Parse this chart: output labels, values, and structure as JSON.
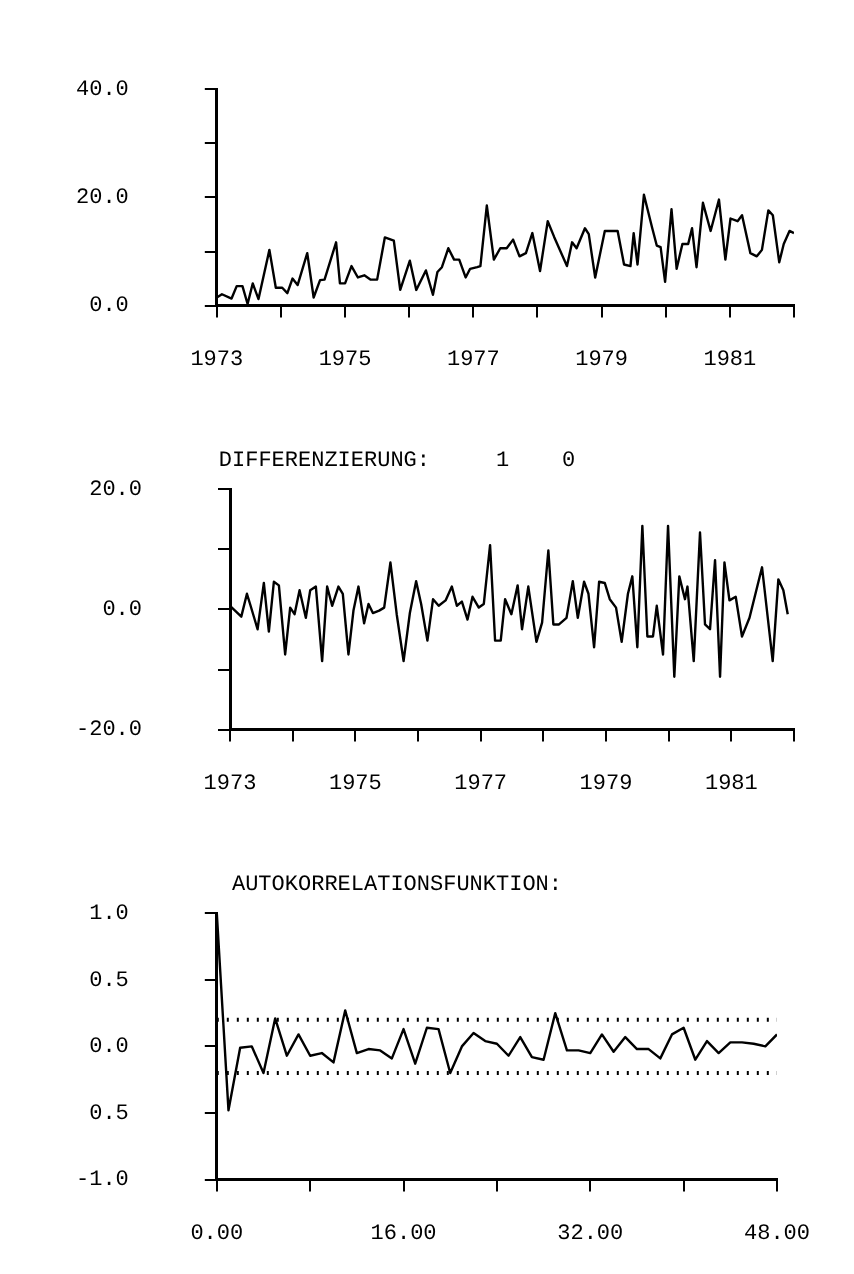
{
  "chart_data": [
    {
      "type": "line",
      "marker": "none",
      "line_style": "solid",
      "grid": false,
      "x": [
        1973.0,
        1973.08,
        1973.23,
        1973.31,
        1973.4,
        1973.48,
        1973.56,
        1973.65,
        1973.82,
        1973.92,
        1974.02,
        1974.1,
        1974.18,
        1974.26,
        1974.41,
        1974.51,
        1974.61,
        1974.68,
        1974.86,
        1974.92,
        1975.0,
        1975.1,
        1975.2,
        1975.3,
        1975.4,
        1975.5,
        1975.62,
        1975.76,
        1975.86,
        1976.01,
        1976.11,
        1976.26,
        1976.37,
        1976.44,
        1976.51,
        1976.61,
        1976.7,
        1976.78,
        1976.88,
        1976.95,
        1977.06,
        1977.11,
        1977.21,
        1977.32,
        1977.42,
        1977.52,
        1977.62,
        1977.72,
        1977.82,
        1977.92,
        1978.04,
        1978.16,
        1978.26,
        1978.46,
        1978.54,
        1978.61,
        1978.74,
        1978.8,
        1978.9,
        1979.05,
        1979.25,
        1979.35,
        1979.45,
        1979.5,
        1979.56,
        1979.66,
        1979.79,
        1979.86,
        1979.92,
        1979.99,
        1980.09,
        1980.17,
        1980.26,
        1980.35,
        1980.41,
        1980.48,
        1980.58,
        1980.7,
        1980.83,
        1980.93,
        1981.01,
        1981.12,
        1981.19,
        1981.32,
        1981.42,
        1981.5,
        1981.6,
        1981.67,
        1981.77,
        1981.84,
        1981.93,
        1982.0
      ],
      "series": [
        {
          "color": "#000000",
          "values": [
            1.5,
            2.1,
            1.3,
            3.6,
            3.6,
            0.3,
            4.1,
            1.2,
            10.3,
            3.3,
            3.3,
            2.3,
            5.0,
            3.8,
            9.7,
            1.5,
            4.7,
            4.8,
            11.7,
            4.1,
            4.1,
            7.3,
            5.2,
            5.6,
            4.8,
            4.8,
            12.6,
            12.0,
            2.9,
            8.3,
            2.9,
            6.5,
            2.0,
            6.2,
            7.1,
            10.6,
            8.5,
            8.5,
            5.2,
            6.8,
            7.1,
            7.3,
            18.5,
            8.5,
            10.6,
            10.6,
            12.2,
            9.1,
            9.7,
            13.4,
            6.4,
            15.6,
            12.7,
            7.3,
            11.7,
            10.6,
            14.3,
            13.2,
            5.2,
            13.8,
            13.8,
            7.6,
            7.3,
            13.4,
            7.6,
            20.5,
            14.3,
            11.1,
            10.8,
            4.4,
            17.8,
            6.8,
            11.4,
            11.4,
            14.3,
            7.1,
            19.0,
            13.8,
            19.6,
            8.5,
            16.1,
            15.6,
            16.7,
            9.7,
            9.1,
            10.3,
            17.6,
            16.7,
            8.0,
            11.4,
            13.8,
            13.4
          ]
        }
      ],
      "xlim": [
        1973,
        1982
      ],
      "xticks": [
        1973,
        {
          "value": 1974,
          "label": null
        },
        1975,
        {
          "value": 1976,
          "label": null
        },
        1977,
        {
          "value": 1978,
          "label": null
        },
        1979,
        {
          "value": 1980,
          "label": null
        },
        1981,
        {
          "value": 1982,
          "label": null
        }
      ],
      "ylim": [
        0,
        40
      ],
      "yticks": [
        {
          "value": 0,
          "label": "0.0"
        },
        {
          "value": 10,
          "label": null
        },
        {
          "value": 20,
          "label": "20.0"
        },
        {
          "value": 30,
          "label": null
        },
        {
          "value": 40,
          "label": "40.0"
        }
      ]
    },
    {
      "type": "line",
      "title": "DIFFERENZIERUNG:     1    0",
      "marker": "none",
      "line_style": "solid",
      "grid": false,
      "x": [
        1973.0,
        1973.08,
        1973.18,
        1973.27,
        1973.32,
        1973.44,
        1973.54,
        1973.62,
        1973.7,
        1973.78,
        1973.88,
        1973.96,
        1974.03,
        1974.11,
        1974.21,
        1974.28,
        1974.37,
        1974.47,
        1974.55,
        1974.63,
        1974.73,
        1974.8,
        1974.89,
        1974.97,
        1975.05,
        1975.14,
        1975.21,
        1975.28,
        1975.38,
        1975.46,
        1975.56,
        1975.66,
        1975.77,
        1975.87,
        1975.97,
        1976.05,
        1976.15,
        1976.24,
        1976.33,
        1976.44,
        1976.54,
        1976.62,
        1976.7,
        1976.79,
        1976.87,
        1976.97,
        1977.05,
        1977.15,
        1977.23,
        1977.32,
        1977.39,
        1977.49,
        1977.59,
        1977.66,
        1977.76,
        1977.89,
        1977.98,
        1978.08,
        1978.16,
        1978.25,
        1978.37,
        1978.47,
        1978.55,
        1978.65,
        1978.72,
        1978.81,
        1978.89,
        1978.98,
        1979.06,
        1979.16,
        1979.25,
        1979.35,
        1979.42,
        1979.5,
        1979.58,
        1979.66,
        1979.75,
        1979.81,
        1979.91,
        1979.99,
        1980.09,
        1980.17,
        1980.26,
        1980.3,
        1980.4,
        1980.5,
        1980.58,
        1980.66,
        1980.74,
        1980.82,
        1980.89,
        1980.97,
        1981.07,
        1981.17,
        1981.29,
        1981.49,
        1981.66,
        1981.75,
        1981.83,
        1981.9
      ],
      "series": [
        {
          "color": "#000000",
          "values": [
            0.6,
            -0.2,
            -1.2,
            2.6,
            0.9,
            -3.3,
            4.4,
            -3.7,
            4.6,
            4.0,
            -7.5,
            0.3,
            -0.8,
            3.2,
            -1.4,
            3.2,
            3.8,
            -8.6,
            3.8,
            0.6,
            3.8,
            2.6,
            -7.5,
            -0.2,
            3.8,
            -2.3,
            0.9,
            -0.6,
            -0.2,
            0.3,
            7.8,
            -0.8,
            -8.6,
            -0.6,
            4.7,
            0.9,
            -5.2,
            1.7,
            0.6,
            1.5,
            3.8,
            0.6,
            1.3,
            -1.7,
            2.1,
            0.3,
            0.9,
            10.7,
            -5.2,
            -5.2,
            1.7,
            -0.8,
            4.0,
            -3.3,
            3.8,
            -5.4,
            -2.2,
            9.8,
            -2.5,
            -2.5,
            -1.4,
            4.7,
            -1.4,
            4.6,
            2.6,
            -6.3,
            4.6,
            4.4,
            1.7,
            0.3,
            -5.4,
            2.6,
            5.5,
            -6.3,
            13.9,
            -4.5,
            -4.5,
            0.6,
            -7.5,
            13.9,
            -11.2,
            5.5,
            1.7,
            3.8,
            -8.6,
            12.8,
            -2.5,
            -3.3,
            8.2,
            -11.2,
            7.8,
            1.5,
            2.1,
            -4.5,
            -1.4,
            7.0,
            -8.6,
            5.0,
            3.2,
            -0.8
          ]
        }
      ],
      "xlim": [
        1973,
        1982
      ],
      "xticks": [
        1973,
        {
          "value": 1974,
          "label": null
        },
        1975,
        {
          "value": 1976,
          "label": null
        },
        1977,
        {
          "value": 1978,
          "label": null
        },
        1979,
        {
          "value": 1980,
          "label": null
        },
        1981,
        {
          "value": 1982,
          "label": null
        }
      ],
      "ylim": [
        -20,
        20
      ],
      "yticks": [
        {
          "value": -20,
          "label": "-20.0"
        },
        {
          "value": -10,
          "label": null
        },
        {
          "value": 0,
          "label": "0.0"
        },
        {
          "value": 10,
          "label": null
        },
        {
          "value": 20,
          "label": "20.0"
        }
      ]
    },
    {
      "type": "line",
      "title": "AUTOKORRELATIONSFUNKTION:",
      "marker": "none",
      "line_style": "solid",
      "grid": false,
      "x": [
        0,
        1,
        2,
        3,
        4,
        5,
        6,
        7,
        8,
        9,
        10,
        11,
        12,
        13,
        14,
        15,
        16,
        17,
        18,
        19,
        20,
        21,
        22,
        23,
        24,
        25,
        26,
        27,
        28,
        29,
        30,
        31,
        32,
        33,
        34,
        35,
        36,
        37,
        38,
        39,
        40,
        41,
        42,
        43,
        44,
        45,
        46,
        47,
        48
      ],
      "series": [
        {
          "color": "#000000",
          "values": [
            1.0,
            -0.48,
            -0.01,
            0.0,
            -0.2,
            0.21,
            -0.07,
            0.09,
            -0.07,
            -0.05,
            -0.12,
            0.27,
            -0.05,
            -0.02,
            -0.03,
            -0.09,
            0.13,
            -0.13,
            0.14,
            0.13,
            -0.2,
            0.0,
            0.1,
            0.04,
            0.02,
            -0.07,
            0.07,
            -0.08,
            -0.1,
            0.25,
            -0.03,
            -0.03,
            -0.05,
            0.09,
            -0.04,
            0.07,
            -0.02,
            -0.02,
            -0.09,
            0.09,
            0.14,
            -0.1,
            0.04,
            -0.05,
            0.03,
            0.03,
            0.02,
            0.0,
            0.09
          ]
        }
      ],
      "ref_lines": [
        {
          "axis": "y",
          "value": 0.2,
          "color": "#000000",
          "line_style": "dotted"
        },
        {
          "axis": "y",
          "value": -0.2,
          "color": "#000000",
          "line_style": "dotted"
        }
      ],
      "xlim": [
        0,
        48
      ],
      "xticks": [
        {
          "value": 0,
          "label": "0.00"
        },
        {
          "value": 8,
          "label": null
        },
        {
          "value": 16,
          "label": "16.00"
        },
        {
          "value": 24,
          "label": null
        },
        {
          "value": 32,
          "label": "32.00"
        },
        {
          "value": 40,
          "label": null
        },
        {
          "value": 48,
          "label": "48.00"
        }
      ],
      "ylim": [
        -1,
        1
      ],
      "yticks": [
        {
          "value": -1,
          "label": "-1.0"
        },
        {
          "value": -0.5,
          "label": "0.5"
        },
        {
          "value": 0,
          "label": "0.0"
        },
        {
          "value": 0.5,
          "label": "0.5"
        },
        {
          "value": 1,
          "label": "1.0"
        }
      ]
    }
  ]
}
